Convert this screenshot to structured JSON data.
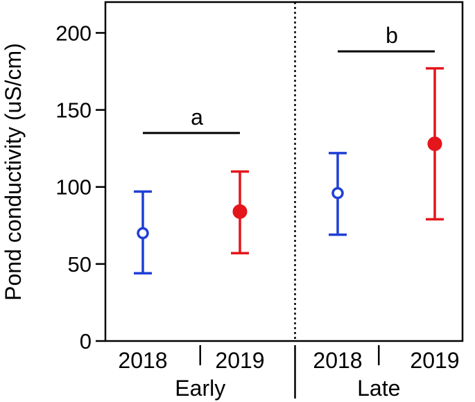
{
  "chart_data": {
    "type": "scatter",
    "ylabel": "Pond conductivity (uS/cm)",
    "ylim": [
      0,
      220
    ],
    "yticks": [
      0,
      50,
      100,
      150,
      200
    ],
    "groups": [
      {
        "label": "Early",
        "years": [
          {
            "year": "2018",
            "mean": 70,
            "low": 44,
            "high": 97,
            "color": "#1f3fd6",
            "marker": "open"
          },
          {
            "year": "2019",
            "mean": 84,
            "low": 57,
            "high": 110,
            "color": "#e4151b",
            "marker": "filled"
          }
        ],
        "significance": {
          "label": "a",
          "y": 135
        }
      },
      {
        "label": "Late",
        "years": [
          {
            "year": "2018",
            "mean": 96,
            "low": 69,
            "high": 122,
            "color": "#1f3fd6",
            "marker": "open"
          },
          {
            "year": "2019",
            "mean": 128,
            "low": 79,
            "high": 177,
            "color": "#e4151b",
            "marker": "filled"
          }
        ],
        "significance": {
          "label": "b",
          "y": 188
        }
      }
    ]
  }
}
